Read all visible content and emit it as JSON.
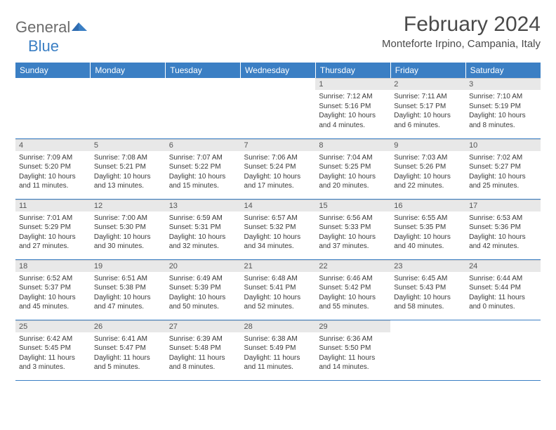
{
  "brand": {
    "part1": "General",
    "part2": "Blue"
  },
  "title": "February 2024",
  "location": "Monteforte Irpino, Campania, Italy",
  "colors": {
    "header_bg": "#3b7fc4",
    "header_text": "#ffffff",
    "daynum_bg": "#e8e8e8",
    "border": "#3b7fc4",
    "text": "#3a3a3a",
    "title_text": "#4a4a4a"
  },
  "layout": {
    "first_weekday_index": 4,
    "rows": 5,
    "cols": 7
  },
  "weekdays": [
    "Sunday",
    "Monday",
    "Tuesday",
    "Wednesday",
    "Thursday",
    "Friday",
    "Saturday"
  ],
  "days": [
    {
      "n": 1,
      "sr": "7:12 AM",
      "ss": "5:16 PM",
      "dl": "10 hours and 4 minutes."
    },
    {
      "n": 2,
      "sr": "7:11 AM",
      "ss": "5:17 PM",
      "dl": "10 hours and 6 minutes."
    },
    {
      "n": 3,
      "sr": "7:10 AM",
      "ss": "5:19 PM",
      "dl": "10 hours and 8 minutes."
    },
    {
      "n": 4,
      "sr": "7:09 AM",
      "ss": "5:20 PM",
      "dl": "10 hours and 11 minutes."
    },
    {
      "n": 5,
      "sr": "7:08 AM",
      "ss": "5:21 PM",
      "dl": "10 hours and 13 minutes."
    },
    {
      "n": 6,
      "sr": "7:07 AM",
      "ss": "5:22 PM",
      "dl": "10 hours and 15 minutes."
    },
    {
      "n": 7,
      "sr": "7:06 AM",
      "ss": "5:24 PM",
      "dl": "10 hours and 17 minutes."
    },
    {
      "n": 8,
      "sr": "7:04 AM",
      "ss": "5:25 PM",
      "dl": "10 hours and 20 minutes."
    },
    {
      "n": 9,
      "sr": "7:03 AM",
      "ss": "5:26 PM",
      "dl": "10 hours and 22 minutes."
    },
    {
      "n": 10,
      "sr": "7:02 AM",
      "ss": "5:27 PM",
      "dl": "10 hours and 25 minutes."
    },
    {
      "n": 11,
      "sr": "7:01 AM",
      "ss": "5:29 PM",
      "dl": "10 hours and 27 minutes."
    },
    {
      "n": 12,
      "sr": "7:00 AM",
      "ss": "5:30 PM",
      "dl": "10 hours and 30 minutes."
    },
    {
      "n": 13,
      "sr": "6:59 AM",
      "ss": "5:31 PM",
      "dl": "10 hours and 32 minutes."
    },
    {
      "n": 14,
      "sr": "6:57 AM",
      "ss": "5:32 PM",
      "dl": "10 hours and 34 minutes."
    },
    {
      "n": 15,
      "sr": "6:56 AM",
      "ss": "5:33 PM",
      "dl": "10 hours and 37 minutes."
    },
    {
      "n": 16,
      "sr": "6:55 AM",
      "ss": "5:35 PM",
      "dl": "10 hours and 40 minutes."
    },
    {
      "n": 17,
      "sr": "6:53 AM",
      "ss": "5:36 PM",
      "dl": "10 hours and 42 minutes."
    },
    {
      "n": 18,
      "sr": "6:52 AM",
      "ss": "5:37 PM",
      "dl": "10 hours and 45 minutes."
    },
    {
      "n": 19,
      "sr": "6:51 AM",
      "ss": "5:38 PM",
      "dl": "10 hours and 47 minutes."
    },
    {
      "n": 20,
      "sr": "6:49 AM",
      "ss": "5:39 PM",
      "dl": "10 hours and 50 minutes."
    },
    {
      "n": 21,
      "sr": "6:48 AM",
      "ss": "5:41 PM",
      "dl": "10 hours and 52 minutes."
    },
    {
      "n": 22,
      "sr": "6:46 AM",
      "ss": "5:42 PM",
      "dl": "10 hours and 55 minutes."
    },
    {
      "n": 23,
      "sr": "6:45 AM",
      "ss": "5:43 PM",
      "dl": "10 hours and 58 minutes."
    },
    {
      "n": 24,
      "sr": "6:44 AM",
      "ss": "5:44 PM",
      "dl": "11 hours and 0 minutes."
    },
    {
      "n": 25,
      "sr": "6:42 AM",
      "ss": "5:45 PM",
      "dl": "11 hours and 3 minutes."
    },
    {
      "n": 26,
      "sr": "6:41 AM",
      "ss": "5:47 PM",
      "dl": "11 hours and 5 minutes."
    },
    {
      "n": 27,
      "sr": "6:39 AM",
      "ss": "5:48 PM",
      "dl": "11 hours and 8 minutes."
    },
    {
      "n": 28,
      "sr": "6:38 AM",
      "ss": "5:49 PM",
      "dl": "11 hours and 11 minutes."
    },
    {
      "n": 29,
      "sr": "6:36 AM",
      "ss": "5:50 PM",
      "dl": "11 hours and 14 minutes."
    }
  ],
  "labels": {
    "sunrise": "Sunrise:",
    "sunset": "Sunset:",
    "daylight": "Daylight:"
  }
}
